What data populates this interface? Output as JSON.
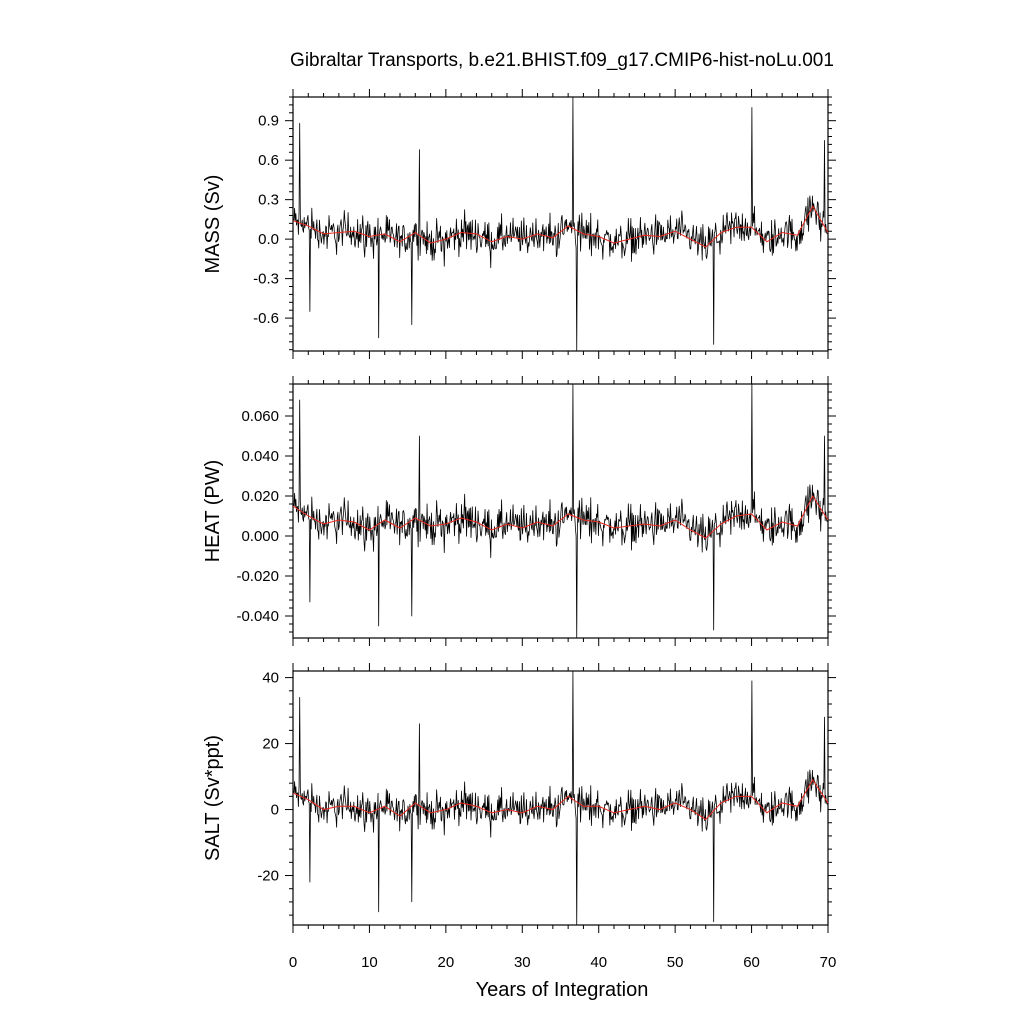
{
  "title": "Gibraltar Transports, b.e21.BHIST.f09_g17.CMIP6-hist-noLu.001",
  "xlabel": "Years of Integration",
  "colors": {
    "monthly": "#000000",
    "annual_mean": "#e8281e"
  },
  "chart_data": [
    {
      "type": "line",
      "ylabel": "MASS (Sv)",
      "xlim": [
        0,
        70
      ],
      "ylim": [
        -0.85,
        1.08
      ],
      "xticks": [
        0,
        10,
        20,
        30,
        40,
        50,
        60,
        70
      ],
      "xticklabels": [
        "0",
        "10",
        "20",
        "30",
        "40",
        "50",
        "60",
        "70"
      ],
      "yticks": [
        -0.6,
        -0.3,
        0.0,
        0.3,
        0.6,
        0.9
      ],
      "yticklabels": [
        "-0.6",
        "-0.3",
        "0.0",
        "0.3",
        "0.6",
        "0.9"
      ],
      "noise_amplitude": 0.2,
      "spikes": [
        [
          0.8,
          0.88
        ],
        [
          2.2,
          -0.55
        ],
        [
          11.2,
          -0.75
        ],
        [
          15.5,
          -0.65
        ],
        [
          16.5,
          0.68
        ],
        [
          36.6,
          1.08
        ],
        [
          37.1,
          -0.85
        ],
        [
          55.0,
          -0.8
        ],
        [
          60.0,
          1.0
        ],
        [
          69.5,
          0.75
        ]
      ],
      "annual_mean": [
        [
          0,
          0.14
        ],
        [
          2,
          0.1
        ],
        [
          4,
          0.04
        ],
        [
          6,
          0.05
        ],
        [
          8,
          0.06
        ],
        [
          10,
          0.02
        ],
        [
          12,
          0.04
        ],
        [
          14,
          -0.02
        ],
        [
          16,
          0.05
        ],
        [
          18,
          -0.03
        ],
        [
          20,
          0.0
        ],
        [
          22,
          0.05
        ],
        [
          24,
          0.04
        ],
        [
          26,
          -0.02
        ],
        [
          28,
          0.02
        ],
        [
          30,
          0.0
        ],
        [
          32,
          0.04
        ],
        [
          34,
          0.01
        ],
        [
          36,
          0.1
        ],
        [
          38,
          0.04
        ],
        [
          40,
          0.02
        ],
        [
          42,
          -0.03
        ],
        [
          44,
          0.0
        ],
        [
          46,
          0.03
        ],
        [
          48,
          0.02
        ],
        [
          50,
          0.06
        ],
        [
          52,
          0.0
        ],
        [
          54,
          -0.06
        ],
        [
          56,
          0.05
        ],
        [
          58,
          0.09
        ],
        [
          60,
          0.09
        ],
        [
          62,
          -0.02
        ],
        [
          64,
          0.05
        ],
        [
          66,
          0.03
        ],
        [
          68,
          0.25
        ],
        [
          70,
          0.05
        ]
      ]
    },
    {
      "type": "line",
      "ylabel": "HEAT (PW)",
      "xlim": [
        0,
        70
      ],
      "ylim": [
        -0.051,
        0.076
      ],
      "xticks": [
        0,
        10,
        20,
        30,
        40,
        50,
        60,
        70
      ],
      "xticklabels": [
        "0",
        "10",
        "20",
        "30",
        "40",
        "50",
        "60",
        "70"
      ],
      "yticks": [
        -0.04,
        -0.02,
        0.0,
        0.02,
        0.04,
        0.06
      ],
      "yticklabels": [
        "-0.040",
        "-0.020",
        "0.000",
        "0.020",
        "0.040",
        "0.060"
      ],
      "noise_amplitude": 0.014,
      "spikes": [
        [
          0.8,
          0.068
        ],
        [
          2.2,
          -0.033
        ],
        [
          11.2,
          -0.045
        ],
        [
          15.5,
          -0.04
        ],
        [
          16.5,
          0.05
        ],
        [
          36.6,
          0.076
        ],
        [
          37.1,
          -0.051
        ],
        [
          55.0,
          -0.047
        ],
        [
          60.0,
          0.076
        ],
        [
          69.5,
          0.05
        ]
      ],
      "annual_mean": [
        [
          0,
          0.015
        ],
        [
          2,
          0.01
        ],
        [
          4,
          0.006
        ],
        [
          6,
          0.008
        ],
        [
          8,
          0.007
        ],
        [
          10,
          0.003
        ],
        [
          12,
          0.008
        ],
        [
          14,
          0.004
        ],
        [
          16,
          0.009
        ],
        [
          18,
          0.005
        ],
        [
          20,
          0.006
        ],
        [
          22,
          0.009
        ],
        [
          24,
          0.007
        ],
        [
          26,
          0.003
        ],
        [
          28,
          0.006
        ],
        [
          30,
          0.004
        ],
        [
          32,
          0.007
        ],
        [
          34,
          0.005
        ],
        [
          36,
          0.011
        ],
        [
          38,
          0.008
        ],
        [
          40,
          0.007
        ],
        [
          42,
          0.004
        ],
        [
          44,
          0.005
        ],
        [
          46,
          0.006
        ],
        [
          48,
          0.005
        ],
        [
          50,
          0.008
        ],
        [
          52,
          0.003
        ],
        [
          54,
          -0.001
        ],
        [
          56,
          0.006
        ],
        [
          58,
          0.01
        ],
        [
          60,
          0.011
        ],
        [
          62,
          0.003
        ],
        [
          64,
          0.007
        ],
        [
          66,
          0.005
        ],
        [
          68,
          0.02
        ],
        [
          70,
          0.008
        ]
      ]
    },
    {
      "type": "line",
      "ylabel": "SALT (Sv*ppt)",
      "xlim": [
        0,
        70
      ],
      "ylim": [
        -35,
        42
      ],
      "xticks": [
        0,
        10,
        20,
        30,
        40,
        50,
        60,
        70
      ],
      "xticklabels": [
        "0",
        "10",
        "20",
        "30",
        "40",
        "50",
        "60",
        "70"
      ],
      "yticks": [
        -20,
        0,
        20,
        40
      ],
      "yticklabels": [
        "-20",
        "0",
        "20",
        "40"
      ],
      "noise_amplitude": 7.5,
      "spikes": [
        [
          0.8,
          34
        ],
        [
          2.2,
          -22
        ],
        [
          11.2,
          -31
        ],
        [
          15.5,
          -28
        ],
        [
          16.5,
          26
        ],
        [
          36.6,
          42
        ],
        [
          37.1,
          -35
        ],
        [
          55.0,
          -34
        ],
        [
          60.0,
          39
        ],
        [
          69.5,
          28
        ]
      ],
      "annual_mean": [
        [
          0,
          5
        ],
        [
          2,
          3
        ],
        [
          4,
          0
        ],
        [
          6,
          1
        ],
        [
          8,
          1
        ],
        [
          10,
          -1
        ],
        [
          12,
          1
        ],
        [
          14,
          -2
        ],
        [
          16,
          2
        ],
        [
          18,
          -1
        ],
        [
          20,
          0
        ],
        [
          22,
          2
        ],
        [
          24,
          1
        ],
        [
          26,
          -1
        ],
        [
          28,
          0
        ],
        [
          30,
          -1
        ],
        [
          32,
          1
        ],
        [
          34,
          0
        ],
        [
          36,
          4
        ],
        [
          38,
          1
        ],
        [
          40,
          1
        ],
        [
          42,
          -1
        ],
        [
          44,
          0
        ],
        [
          46,
          1
        ],
        [
          48,
          0
        ],
        [
          50,
          2
        ],
        [
          52,
          0
        ],
        [
          54,
          -3
        ],
        [
          56,
          2
        ],
        [
          58,
          4
        ],
        [
          60,
          4
        ],
        [
          62,
          -1
        ],
        [
          64,
          2
        ],
        [
          66,
          1
        ],
        [
          68,
          9
        ],
        [
          70,
          2
        ]
      ]
    }
  ]
}
